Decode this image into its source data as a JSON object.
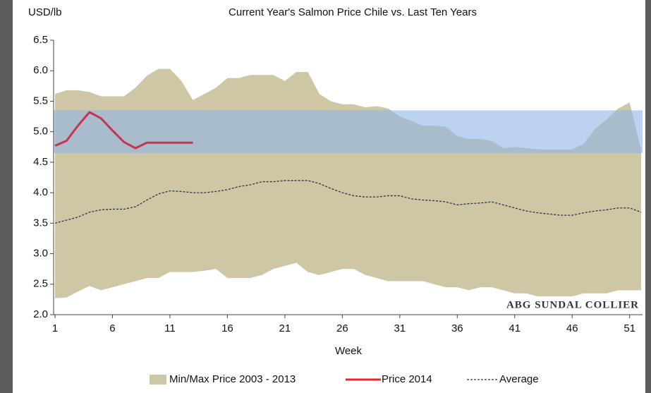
{
  "chart_data": {
    "type": "line",
    "title": "Current Year's Salmon Price Chile  vs. Last Ten Years",
    "y_label": "USD/lb",
    "x_label": "Week",
    "watermark": "ABG SUNDAL COLLIER",
    "x": [
      1,
      2,
      3,
      4,
      5,
      6,
      7,
      8,
      9,
      10,
      11,
      12,
      13,
      14,
      15,
      16,
      17,
      18,
      19,
      20,
      21,
      22,
      23,
      24,
      25,
      26,
      27,
      28,
      29,
      30,
      31,
      32,
      33,
      34,
      35,
      36,
      37,
      38,
      39,
      40,
      41,
      42,
      43,
      44,
      45,
      46,
      47,
      48,
      49,
      50,
      51,
      52
    ],
    "xlim": [
      1,
      52
    ],
    "xticks": [
      1,
      6,
      11,
      16,
      21,
      26,
      31,
      36,
      41,
      46,
      51
    ],
    "ylim": [
      2,
      6.5
    ],
    "yticks": [
      {
        "value": 2,
        "label": "2.0"
      },
      2.5,
      {
        "value": 3,
        "label": "3.0"
      },
      3.5,
      {
        "value": 4,
        "label": "4.0"
      },
      4.5,
      {
        "value": 5,
        "label": "5.0"
      },
      5.5,
      {
        "value": 6,
        "label": "6.0"
      },
      6.5
    ],
    "highlight_band": {
      "ylim": [
        4.65,
        5.35
      ],
      "color": "#8fb4e6"
    },
    "series": [
      {
        "name": "Min/Max Price 2003 - 2013",
        "type": "range",
        "color": "#cdc7a5",
        "high": [
          5.62,
          5.68,
          5.68,
          5.65,
          5.58,
          5.58,
          5.58,
          5.72,
          5.92,
          6.03,
          6.03,
          5.83,
          5.52,
          5.62,
          5.72,
          5.88,
          5.88,
          5.93,
          5.93,
          5.93,
          5.83,
          5.98,
          5.98,
          5.62,
          5.5,
          5.45,
          5.45,
          5.4,
          5.42,
          5.38,
          5.25,
          5.18,
          5.1,
          5.1,
          5.08,
          4.93,
          4.88,
          4.88,
          4.85,
          4.73,
          4.75,
          4.73,
          4.71,
          4.71,
          4.71,
          4.71,
          4.8,
          5.05,
          5.2,
          5.38,
          5.48,
          4.7
        ],
        "low": [
          2.27,
          2.28,
          2.38,
          2.47,
          2.4,
          2.45,
          2.5,
          2.55,
          2.6,
          2.6,
          2.7,
          2.7,
          2.7,
          2.72,
          2.75,
          2.6,
          2.6,
          2.6,
          2.65,
          2.75,
          2.8,
          2.85,
          2.7,
          2.65,
          2.7,
          2.75,
          2.75,
          2.65,
          2.6,
          2.55,
          2.55,
          2.55,
          2.55,
          2.5,
          2.45,
          2.45,
          2.4,
          2.45,
          2.45,
          2.4,
          2.35,
          2.35,
          2.3,
          2.3,
          2.3,
          2.3,
          2.35,
          2.35,
          2.35,
          2.4,
          2.4,
          2.4
        ]
      },
      {
        "name": "Price 2014",
        "type": "line",
        "color": "#c8334f",
        "values": [
          4.77,
          4.85,
          5.1,
          5.32,
          5.22,
          5.02,
          4.83,
          4.73,
          4.82,
          4.82,
          4.82,
          4.82,
          4.82,
          null,
          null,
          null,
          null,
          null,
          null,
          null,
          null,
          null,
          null,
          null,
          null,
          null,
          null,
          null,
          null,
          null,
          null,
          null,
          null,
          null,
          null,
          null,
          null,
          null,
          null,
          null,
          null,
          null,
          null,
          null,
          null,
          null,
          null,
          null,
          null,
          null,
          null,
          null
        ]
      },
      {
        "name": "Average",
        "type": "dashed",
        "color": "#333344",
        "values": [
          3.5,
          3.55,
          3.6,
          3.68,
          3.72,
          3.73,
          3.73,
          3.77,
          3.88,
          3.98,
          4.03,
          4.02,
          4.0,
          4.0,
          4.02,
          4.05,
          4.1,
          4.13,
          4.18,
          4.18,
          4.2,
          4.2,
          4.2,
          4.15,
          4.07,
          4.0,
          3.95,
          3.93,
          3.93,
          3.95,
          3.95,
          3.9,
          3.88,
          3.87,
          3.85,
          3.8,
          3.82,
          3.83,
          3.85,
          3.8,
          3.75,
          3.7,
          3.67,
          3.65,
          3.63,
          3.63,
          3.67,
          3.7,
          3.72,
          3.75,
          3.75,
          3.68
        ]
      }
    ]
  }
}
